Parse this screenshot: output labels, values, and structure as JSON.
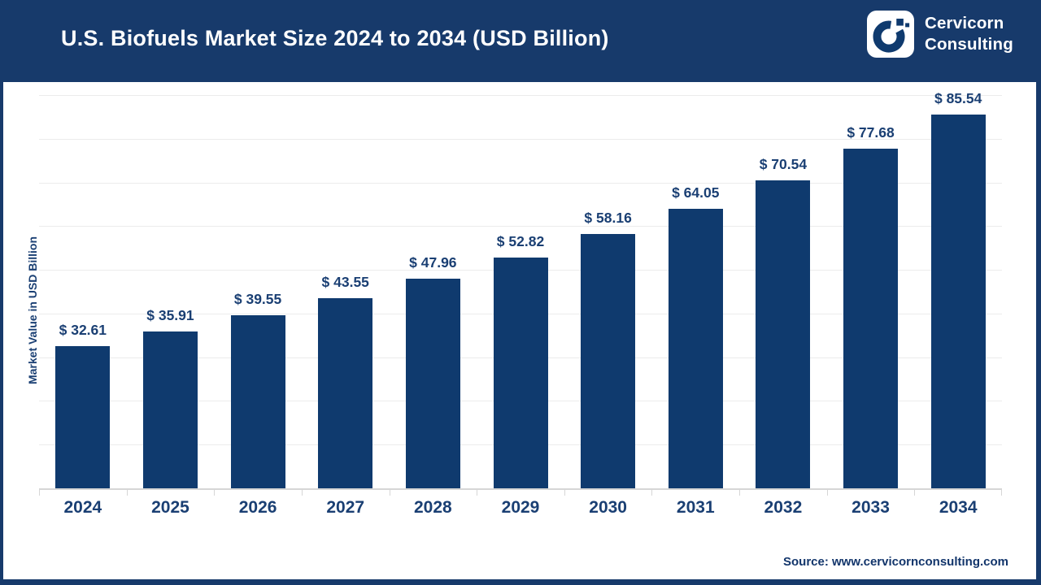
{
  "header": {
    "title": "U.S. Biofuels Market Size 2024 to 2034 (USD Billion)",
    "logo": {
      "line1": "Cervicorn",
      "line2": "Consulting"
    }
  },
  "chart_data": {
    "type": "bar",
    "title": "U.S. Biofuels Market Size 2024 to 2034 (USD Billion)",
    "categories": [
      "2024",
      "2025",
      "2026",
      "2027",
      "2028",
      "2029",
      "2030",
      "2031",
      "2032",
      "2033",
      "2034"
    ],
    "values": [
      32.61,
      35.91,
      39.55,
      43.55,
      47.96,
      52.82,
      58.16,
      64.05,
      70.54,
      77.68,
      85.54
    ],
    "value_prefix": "$ ",
    "xlabel": "",
    "ylabel": "Market Value in USD Billion",
    "ylim": [
      0,
      93
    ],
    "gridline_step": 10,
    "grid": true,
    "legend": false
  },
  "footer": {
    "source": "Source: www.cervicornconsulting.com"
  },
  "colors": {
    "navy": "#173A6B",
    "bar": "#0F3A6E",
    "label_text": "#1A3F73",
    "gridline": "#ECECEC",
    "axis_line": "#D6D6D6",
    "background": "#FFFFFF"
  }
}
